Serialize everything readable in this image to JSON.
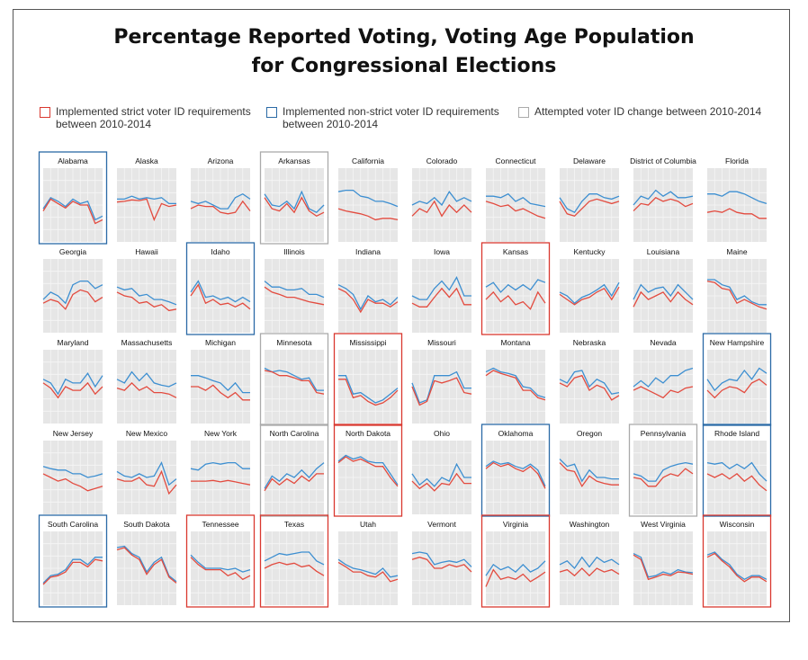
{
  "chart_data": {
    "type": "line",
    "title": "Percentage Reported Voting, Voting Age Population\nfor Congressional Elections",
    "xlabel": "",
    "ylabel": "",
    "grid": true,
    "legend_placement": "top",
    "legend": [
      {
        "key": "strict",
        "label": "Implemented strict voter ID requirements between 2010-2014",
        "color": "#d9382f"
      },
      {
        "key": "nonstrict",
        "label": "Implemented non-strict voter ID requirements between 2010-2014",
        "color": "#2b6aa6"
      },
      {
        "key": "attempted",
        "label": "Attempted voter ID change between 2010-2014",
        "color": "#aaaaaa"
      }
    ],
    "series_colors": {
      "blue": "#3d8fd1",
      "red": "#e34b3f"
    },
    "panels": [
      {
        "state": "Alabama",
        "group": "nonstrict",
        "blue": [
          45,
          60,
          55,
          48,
          58,
          52,
          55,
          30,
          35
        ],
        "red": [
          42,
          58,
          52,
          46,
          55,
          50,
          50,
          25,
          30
        ]
      },
      {
        "state": "Alaska",
        "group": "none",
        "blue": [
          58,
          58,
          62,
          58,
          60,
          58,
          60,
          52,
          52
        ],
        "red": [
          54,
          55,
          57,
          56,
          58,
          30,
          52,
          48,
          50
        ]
      },
      {
        "state": "Arizona",
        "group": "none",
        "blue": [
          55,
          52,
          55,
          50,
          45,
          45,
          60,
          65,
          58
        ],
        "red": [
          45,
          50,
          48,
          48,
          40,
          38,
          40,
          55,
          42
        ]
      },
      {
        "state": "Arkansas",
        "group": "attempted",
        "blue": [
          65,
          50,
          48,
          55,
          45,
          68,
          45,
          40,
          50
        ],
        "red": [
          60,
          45,
          42,
          52,
          40,
          60,
          42,
          35,
          40
        ]
      },
      {
        "state": "California",
        "group": "none",
        "blue": [
          68,
          70,
          70,
          62,
          60,
          55,
          55,
          52,
          48
        ],
        "red": [
          45,
          42,
          40,
          38,
          35,
          30,
          32,
          32,
          30
        ]
      },
      {
        "state": "Colorado",
        "group": "none",
        "blue": [
          50,
          55,
          52,
          60,
          50,
          68,
          55,
          60,
          55
        ],
        "red": [
          35,
          45,
          40,
          55,
          35,
          50,
          40,
          50,
          40
        ]
      },
      {
        "state": "Connecticut",
        "group": "none",
        "blue": [
          62,
          62,
          60,
          65,
          55,
          60,
          52,
          50,
          48
        ],
        "red": [
          55,
          52,
          48,
          50,
          42,
          45,
          40,
          35,
          32
        ]
      },
      {
        "state": "Delaware",
        "group": "none",
        "blue": [
          60,
          45,
          40,
          55,
          65,
          65,
          60,
          58,
          62
        ],
        "red": [
          55,
          38,
          35,
          45,
          55,
          58,
          55,
          52,
          55
        ]
      },
      {
        "state": "District of Columbia",
        "group": "none",
        "blue": [
          50,
          62,
          58,
          70,
          62,
          68,
          60,
          60,
          62
        ],
        "red": [
          42,
          52,
          50,
          60,
          55,
          58,
          55,
          48,
          52
        ]
      },
      {
        "state": "Florida",
        "group": "none",
        "blue": [
          65,
          65,
          62,
          68,
          68,
          65,
          60,
          55,
          52
        ],
        "red": [
          40,
          42,
          40,
          45,
          40,
          38,
          38,
          32,
          32
        ]
      },
      {
        "state": "Georgia",
        "group": "none",
        "blue": [
          45,
          55,
          50,
          40,
          65,
          70,
          70,
          60,
          65
        ],
        "red": [
          40,
          45,
          42,
          32,
          52,
          58,
          55,
          42,
          48
        ]
      },
      {
        "state": "Hawaii",
        "group": "none",
        "blue": [
          62,
          58,
          60,
          50,
          52,
          45,
          45,
          42,
          38
        ],
        "red": [
          55,
          50,
          48,
          40,
          42,
          35,
          38,
          30,
          32
        ]
      },
      {
        "state": "Idaho",
        "group": "nonstrict",
        "blue": [
          55,
          70,
          48,
          50,
          45,
          48,
          42,
          48,
          42
        ],
        "red": [
          50,
          65,
          40,
          45,
          38,
          40,
          35,
          40,
          32
        ]
      },
      {
        "state": "Illinois",
        "group": "none",
        "blue": [
          70,
          62,
          62,
          58,
          58,
          60,
          52,
          52,
          48
        ],
        "red": [
          62,
          55,
          52,
          48,
          48,
          45,
          42,
          40,
          38
        ]
      },
      {
        "state": "Indiana",
        "group": "none",
        "blue": [
          65,
          60,
          52,
          32,
          50,
          42,
          45,
          38,
          48
        ],
        "red": [
          60,
          55,
          45,
          28,
          45,
          40,
          40,
          35,
          42
        ]
      },
      {
        "state": "Iowa",
        "group": "none",
        "blue": [
          50,
          45,
          45,
          60,
          70,
          58,
          75,
          50,
          50
        ],
        "red": [
          40,
          35,
          35,
          48,
          60,
          48,
          60,
          38,
          38
        ]
      },
      {
        "state": "Kansas",
        "group": "strict",
        "blue": [
          62,
          68,
          55,
          65,
          58,
          65,
          58,
          72,
          68
        ],
        "red": [
          45,
          55,
          42,
          50,
          38,
          42,
          32,
          55,
          40
        ]
      },
      {
        "state": "Kentucky",
        "group": "none",
        "blue": [
          55,
          50,
          40,
          48,
          52,
          58,
          65,
          50,
          68
        ],
        "red": [
          52,
          45,
          38,
          45,
          48,
          55,
          60,
          45,
          62
        ]
      },
      {
        "state": "Louisiana",
        "group": "none",
        "blue": [
          45,
          65,
          55,
          60,
          62,
          50,
          65,
          55,
          45
        ],
        "red": [
          35,
          55,
          45,
          50,
          55,
          42,
          55,
          45,
          38
        ]
      },
      {
        "state": "Maine",
        "group": "none",
        "blue": [
          72,
          72,
          65,
          62,
          45,
          50,
          42,
          38,
          38
        ],
        "red": [
          70,
          68,
          60,
          58,
          40,
          45,
          40,
          35,
          32
        ]
      },
      {
        "state": "Maryland",
        "group": "none",
        "blue": [
          60,
          55,
          40,
          60,
          55,
          55,
          68,
          50,
          65
        ],
        "red": [
          55,
          48,
          35,
          50,
          45,
          45,
          55,
          40,
          50
        ]
      },
      {
        "state": "Massachusetts",
        "group": "none",
        "blue": [
          60,
          55,
          70,
          58,
          68,
          55,
          52,
          50,
          55
        ],
        "red": [
          48,
          45,
          55,
          45,
          50,
          42,
          42,
          40,
          35
        ]
      },
      {
        "state": "Michigan",
        "group": "none",
        "blue": [
          65,
          65,
          62,
          58,
          55,
          45,
          55,
          42,
          42
        ],
        "red": [
          50,
          50,
          45,
          52,
          42,
          35,
          42,
          32,
          32
        ]
      },
      {
        "state": "Minnesota",
        "group": "attempted",
        "blue": [
          75,
          70,
          72,
          70,
          65,
          60,
          62,
          45,
          45
        ],
        "red": [
          72,
          70,
          65,
          65,
          62,
          58,
          58,
          42,
          40
        ]
      },
      {
        "state": "Mississippi",
        "group": "strict",
        "blue": [
          65,
          65,
          40,
          42,
          35,
          28,
          32,
          40,
          48
        ],
        "red": [
          60,
          60,
          35,
          38,
          30,
          25,
          28,
          35,
          45
        ]
      },
      {
        "state": "Missouri",
        "group": "none",
        "blue": [
          55,
          28,
          32,
          65,
          65,
          65,
          70,
          48,
          48
        ],
        "red": [
          50,
          25,
          30,
          58,
          55,
          58,
          62,
          42,
          40
        ]
      },
      {
        "state": "Montana",
        "group": "none",
        "blue": [
          70,
          75,
          70,
          68,
          65,
          50,
          48,
          38,
          35
        ],
        "red": [
          65,
          72,
          68,
          65,
          62,
          45,
          45,
          35,
          32
        ]
      },
      {
        "state": "Nebraska",
        "group": "none",
        "blue": [
          60,
          55,
          70,
          72,
          50,
          60,
          55,
          40,
          42
        ],
        "red": [
          55,
          50,
          62,
          65,
          45,
          52,
          48,
          32,
          38
        ]
      },
      {
        "state": "Nevada",
        "group": "none",
        "blue": [
          50,
          58,
          50,
          62,
          55,
          65,
          65,
          72,
          75
        ],
        "red": [
          45,
          50,
          45,
          40,
          35,
          45,
          42,
          48,
          50
        ]
      },
      {
        "state": "New Hampshire",
        "group": "nonstrict",
        "blue": [
          60,
          45,
          55,
          60,
          58,
          72,
          60,
          75,
          68
        ],
        "red": [
          45,
          35,
          45,
          50,
          48,
          42,
          55,
          60,
          52
        ]
      },
      {
        "state": "New Jersey",
        "group": "none",
        "blue": [
          65,
          62,
          60,
          60,
          55,
          55,
          50,
          52,
          55
        ],
        "red": [
          55,
          50,
          45,
          48,
          42,
          38,
          32,
          35,
          38
        ]
      },
      {
        "state": "New Mexico",
        "group": "none",
        "blue": [
          58,
          52,
          50,
          55,
          50,
          52,
          70,
          40,
          48
        ],
        "red": [
          48,
          45,
          45,
          50,
          40,
          38,
          58,
          28,
          40
        ]
      },
      {
        "state": "New York",
        "group": "none",
        "blue": [
          62,
          60,
          68,
          70,
          68,
          70,
          70,
          62,
          62
        ],
        "red": [
          45,
          45,
          45,
          46,
          44,
          46,
          44,
          42,
          40
        ]
      },
      {
        "state": "North Carolina",
        "group": "attempted",
        "blue": [
          35,
          52,
          45,
          55,
          50,
          60,
          50,
          62,
          70
        ],
        "red": [
          32,
          48,
          40,
          48,
          42,
          52,
          45,
          55,
          55
        ]
      },
      {
        "state": "North Dakota",
        "group": "strict",
        "blue": [
          72,
          80,
          75,
          78,
          72,
          70,
          70,
          55,
          40
        ],
        "red": [
          70,
          78,
          72,
          75,
          70,
          65,
          65,
          50,
          38
        ]
      },
      {
        "state": "Ohio",
        "group": "none",
        "blue": [
          55,
          40,
          48,
          38,
          50,
          45,
          68,
          50,
          50
        ],
        "red": [
          45,
          35,
          42,
          32,
          42,
          40,
          55,
          42,
          42
        ]
      },
      {
        "state": "Oklahoma",
        "group": "nonstrict",
        "blue": [
          65,
          72,
          68,
          70,
          65,
          62,
          68,
          60,
          38
        ],
        "red": [
          62,
          70,
          65,
          68,
          62,
          58,
          65,
          55,
          35
        ]
      },
      {
        "state": "Oregon",
        "group": "none",
        "blue": [
          75,
          65,
          68,
          45,
          60,
          50,
          50,
          48,
          48
        ],
        "red": [
          70,
          60,
          58,
          38,
          52,
          45,
          42,
          40,
          40
        ]
      },
      {
        "state": "Pennsylvania",
        "group": "attempted",
        "blue": [
          55,
          52,
          45,
          45,
          60,
          65,
          68,
          70,
          68
        ],
        "red": [
          50,
          48,
          38,
          38,
          50,
          55,
          52,
          62,
          55
        ]
      },
      {
        "state": "Rhode Island",
        "group": "nonstrict",
        "blue": [
          70,
          68,
          70,
          62,
          68,
          62,
          70,
          55,
          45
        ],
        "red": [
          55,
          50,
          55,
          48,
          55,
          45,
          52,
          40,
          32
        ]
      },
      {
        "state": "South Carolina",
        "group": "nonstrict",
        "blue": [
          30,
          40,
          42,
          48,
          62,
          62,
          55,
          65,
          65
        ],
        "red": [
          28,
          38,
          40,
          45,
          58,
          58,
          52,
          62,
          60
        ]
      },
      {
        "state": "South Dakota",
        "group": "none",
        "blue": [
          78,
          80,
          70,
          65,
          45,
          58,
          65,
          40,
          32
        ],
        "red": [
          75,
          78,
          68,
          62,
          42,
          55,
          62,
          38,
          30
        ]
      },
      {
        "state": "Tennessee",
        "group": "strict",
        "blue": [
          68,
          58,
          50,
          50,
          50,
          48,
          50,
          45,
          48
        ],
        "red": [
          65,
          55,
          48,
          48,
          48,
          40,
          44,
          35,
          40
        ]
      },
      {
        "state": "Texas",
        "group": "strict",
        "blue": [
          60,
          65,
          70,
          68,
          70,
          72,
          72,
          60,
          55
        ],
        "red": [
          50,
          55,
          58,
          55,
          57,
          52,
          54,
          46,
          40
        ]
      },
      {
        "state": "Utah",
        "group": "none",
        "blue": [
          62,
          55,
          50,
          48,
          45,
          42,
          50,
          38,
          40
        ],
        "red": [
          58,
          52,
          45,
          45,
          40,
          38,
          45,
          32,
          35
        ]
      },
      {
        "state": "Vermont",
        "group": "none",
        "blue": [
          70,
          72,
          70,
          55,
          58,
          60,
          58,
          62,
          52
        ],
        "red": [
          62,
          65,
          62,
          50,
          50,
          55,
          52,
          55,
          45
        ]
      },
      {
        "state": "Virginia",
        "group": "strict",
        "blue": [
          40,
          55,
          48,
          52,
          45,
          55,
          45,
          50,
          60
        ],
        "red": [
          25,
          48,
          35,
          38,
          35,
          42,
          32,
          38,
          45
        ]
      },
      {
        "state": "Washington",
        "group": "none",
        "blue": [
          55,
          60,
          50,
          65,
          52,
          65,
          58,
          62,
          55
        ],
        "red": [
          45,
          48,
          40,
          50,
          40,
          50,
          45,
          48,
          42
        ]
      },
      {
        "state": "West Virginia",
        "group": "none",
        "blue": [
          70,
          65,
          38,
          40,
          45,
          42,
          48,
          45,
          44
        ],
        "red": [
          68,
          62,
          35,
          38,
          42,
          40,
          45,
          44,
          42
        ]
      },
      {
        "state": "Wisconsin",
        "group": "strict",
        "blue": [
          68,
          72,
          62,
          55,
          42,
          35,
          40,
          40,
          35
        ],
        "red": [
          65,
          70,
          60,
          52,
          40,
          32,
          38,
          38,
          32
        ]
      }
    ]
  }
}
